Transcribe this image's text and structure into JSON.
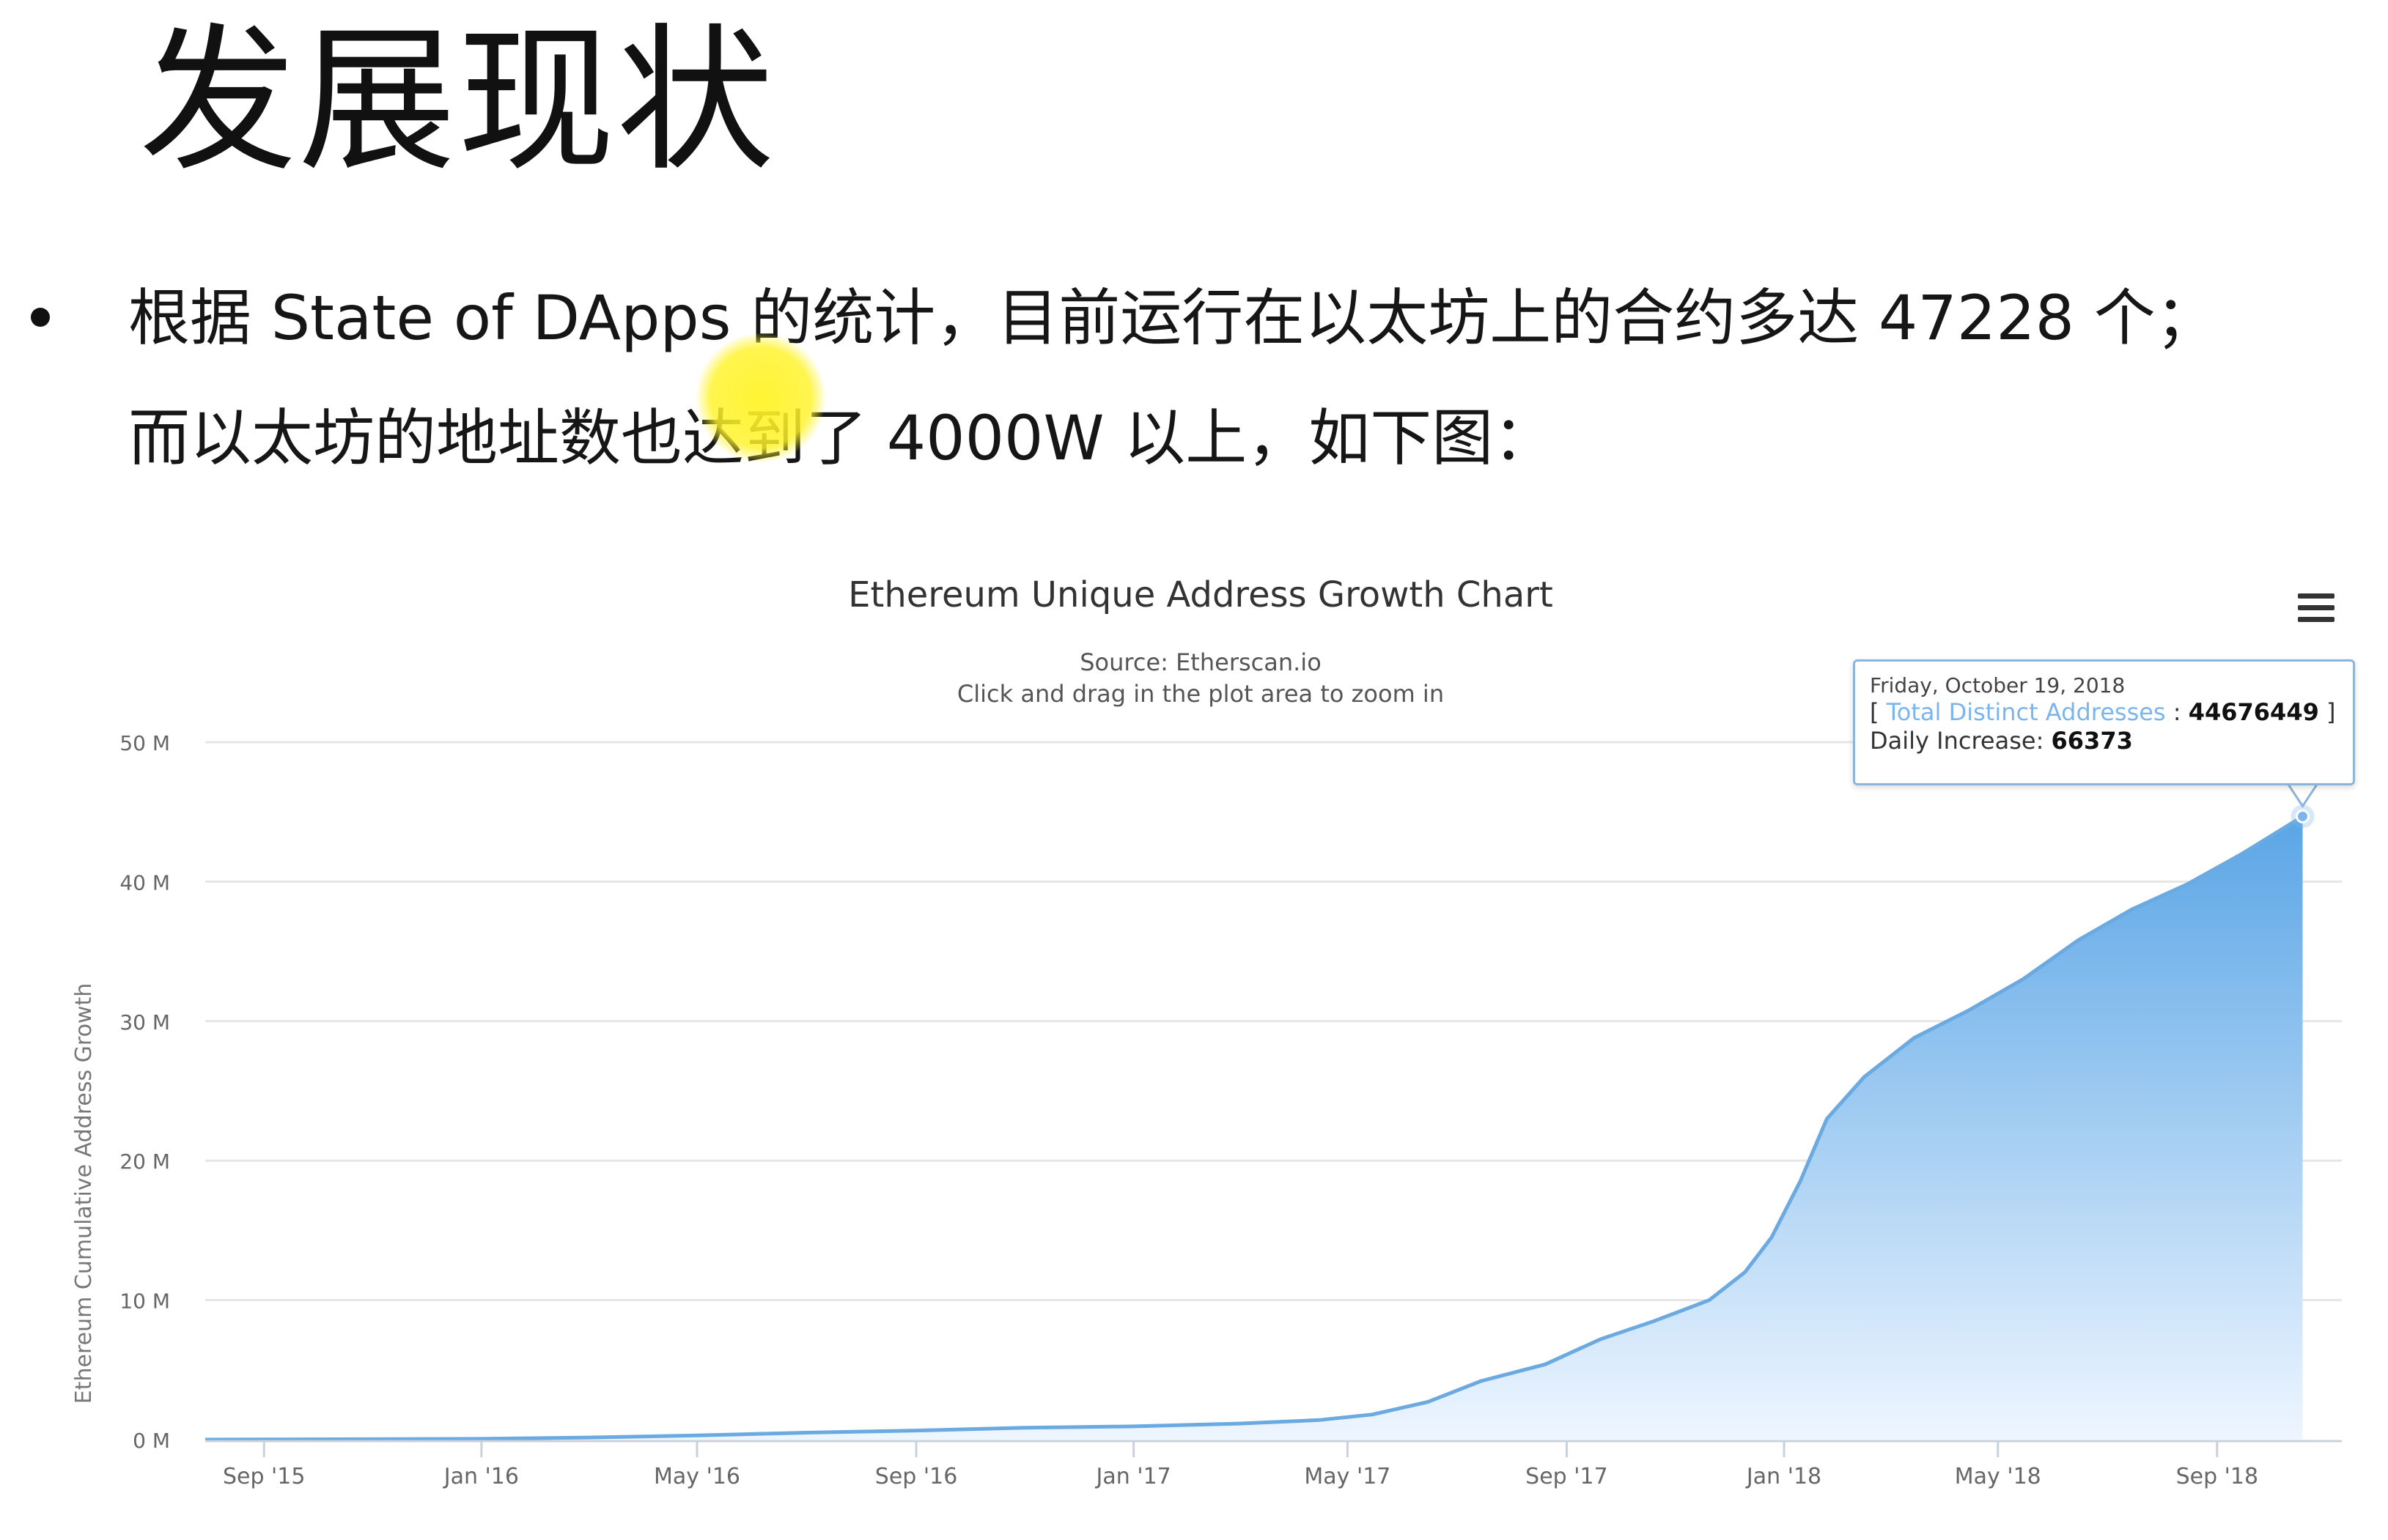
{
  "slide": {
    "title": "发展现状",
    "body_line_1": "根据 State of DApps 的统计，目前运行在以太坊上的合约多达 47228 个；",
    "body_line_2": "而以太坊的地址数也达到了 4000W 以上，如下图："
  },
  "colors": {
    "series_line": "#6aaae0",
    "series_fill_top": "#5aa5e6",
    "series_fill_bottom": "#eef6ff",
    "grid": "#e6e6e6",
    "axis_text": "#666666",
    "title_text": "#333333",
    "tooltip_border": "#8db4d9",
    "tooltip_series_name": "#7cb5ec",
    "highlight": "#fff328"
  },
  "tooltip": {
    "date": "Friday, October 19, 2018",
    "bracket_open": "[",
    "series_name": "Total Distinct Addresses",
    "separator": ":",
    "series_value": "44676449",
    "bracket_close": "]",
    "daily_label": "Daily Increase:",
    "daily_value": "66373"
  },
  "chart_data": {
    "type": "area",
    "title": "Ethereum Unique Address Growth Chart",
    "subtitle_source": "Source: Etherscan.io",
    "subtitle_hint": "Click and drag in the plot area to zoom in",
    "ylabel": "Ethereum Cumulative Address Growth",
    "xlabel": "",
    "xlim": [
      "2015-07-30",
      "2018-11-10"
    ],
    "ylim": [
      0,
      50000000
    ],
    "grid": true,
    "legend": "none",
    "y_ticks": [
      {
        "value": 0,
        "label": "0 M"
      },
      {
        "value": 10000000,
        "label": "10 M"
      },
      {
        "value": 20000000,
        "label": "20 M"
      },
      {
        "value": 30000000,
        "label": "30 M"
      },
      {
        "value": 40000000,
        "label": "40 M"
      },
      {
        "value": 50000000,
        "label": "50 M"
      }
    ],
    "x_ticks": [
      {
        "date": "2015-09-01",
        "label": "Sep '15"
      },
      {
        "date": "2016-01-01",
        "label": "Jan '16"
      },
      {
        "date": "2016-05-01",
        "label": "May '16"
      },
      {
        "date": "2016-09-01",
        "label": "Sep '16"
      },
      {
        "date": "2017-01-01",
        "label": "Jan '17"
      },
      {
        "date": "2017-05-01",
        "label": "May '17"
      },
      {
        "date": "2017-09-01",
        "label": "Sep '17"
      },
      {
        "date": "2018-01-01",
        "label": "Jan '18"
      },
      {
        "date": "2018-05-01",
        "label": "May '18"
      },
      {
        "date": "2018-09-01",
        "label": "Sep '18"
      }
    ],
    "series": [
      {
        "points": [
          [
            "2015-07-30",
            0
          ],
          [
            "2015-09-01",
            10000
          ],
          [
            "2016-01-01",
            60000
          ],
          [
            "2016-03-01",
            150000
          ],
          [
            "2016-05-01",
            300000
          ],
          [
            "2016-07-01",
            500000
          ],
          [
            "2016-09-01",
            650000
          ],
          [
            "2016-11-01",
            850000
          ],
          [
            "2017-01-01",
            950000
          ],
          [
            "2017-03-01",
            1150000
          ],
          [
            "2017-04-15",
            1400000
          ],
          [
            "2017-05-15",
            1800000
          ],
          [
            "2017-06-15",
            2700000
          ],
          [
            "2017-07-15",
            4200000
          ],
          [
            "2017-08-20",
            5400000
          ],
          [
            "2017-09-20",
            7200000
          ],
          [
            "2017-10-20",
            8500000
          ],
          [
            "2017-11-20",
            10000000
          ],
          [
            "2017-12-10",
            12000000
          ],
          [
            "2017-12-25",
            14500000
          ],
          [
            "2018-01-10",
            18500000
          ],
          [
            "2018-01-25",
            23000000
          ],
          [
            "2018-02-15",
            26000000
          ],
          [
            "2018-03-15",
            28800000
          ],
          [
            "2018-04-15",
            30800000
          ],
          [
            "2018-05-15",
            33000000
          ],
          [
            "2018-06-15",
            35800000
          ],
          [
            "2018-07-15",
            38000000
          ],
          [
            "2018-08-15",
            39800000
          ],
          [
            "2018-09-15",
            42000000
          ],
          [
            "2018-10-19",
            44676449
          ]
        ]
      }
    ]
  }
}
